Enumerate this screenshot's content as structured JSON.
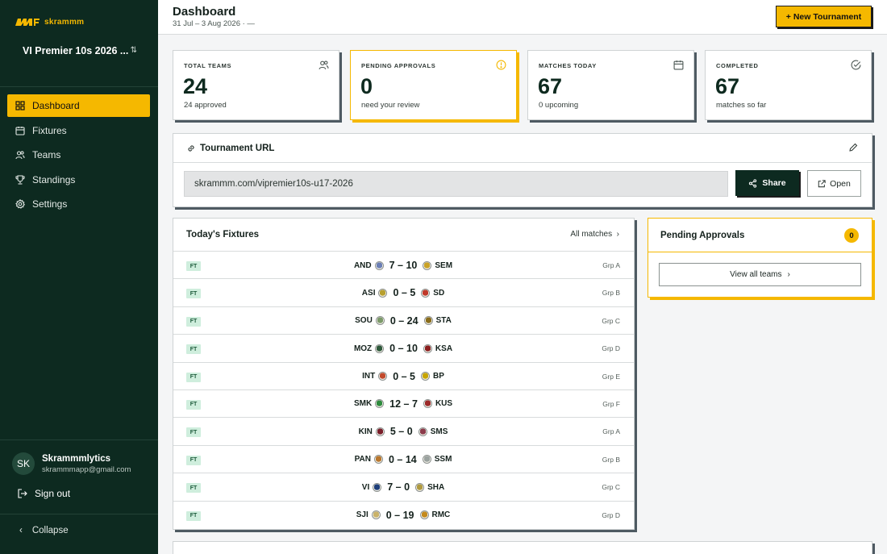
{
  "brand": {
    "name": "skrammm",
    "color": "#f5b800"
  },
  "sidebar": {
    "tournament": "VI Premier 10s 2026 ...",
    "items": [
      {
        "label": "Dashboard",
        "icon": "grid-icon",
        "active": true
      },
      {
        "label": "Fixtures",
        "icon": "calendar-icon"
      },
      {
        "label": "Teams",
        "icon": "users-icon"
      },
      {
        "label": "Standings",
        "icon": "trophy-icon"
      },
      {
        "label": "Settings",
        "icon": "gear-icon"
      }
    ],
    "user": {
      "initials": "SK",
      "name": "Skrammmlytics",
      "email": "skrammmapp@gmail.com"
    },
    "sign_out": "Sign out",
    "collapse": "Collapse"
  },
  "header": {
    "title": "Dashboard",
    "date_range": "31 Jul – 3 Aug 2026 · —",
    "new_tournament": "+ New Tournament"
  },
  "stats": [
    {
      "label": "TOTAL TEAMS",
      "value": "24",
      "sub": "24 approved",
      "icon": "users-icon"
    },
    {
      "label": "PENDING APPROVALS",
      "value": "0",
      "sub": "need your review",
      "icon": "alert-circle-icon",
      "accent": "#f5b800"
    },
    {
      "label": "MATCHES TODAY",
      "value": "67",
      "sub": "0 upcoming",
      "icon": "calendar-icon"
    },
    {
      "label": "COMPLETED",
      "value": "67",
      "sub": "matches so far",
      "icon": "check-circle-icon"
    }
  ],
  "url_card": {
    "title": "Tournament URL",
    "url": "skrammm.com/vipremier10s-u17-2026",
    "share": "Share",
    "open": "Open"
  },
  "fixtures": {
    "title": "Today's Fixtures",
    "all_matches": "All matches",
    "rows": [
      {
        "status": "FT",
        "home": "AND",
        "score": "7 – 10",
        "away": "SEM",
        "group": "Grp A",
        "home_color": "#6b7fb5",
        "away_color": "#c9a227"
      },
      {
        "status": "FT",
        "home": "ASI",
        "score": "0 – 5",
        "away": "SD",
        "group": "Grp B",
        "home_color": "#b8a030",
        "away_color": "#c0392b"
      },
      {
        "status": "FT",
        "home": "SOU",
        "score": "0 – 24",
        "away": "STA",
        "group": "Grp C",
        "home_color": "#7c9a6a",
        "away_color": "#8a6d1c"
      },
      {
        "status": "FT",
        "home": "MOZ",
        "score": "0 – 10",
        "away": "KSA",
        "group": "Grp D",
        "home_color": "#2f5a3c",
        "away_color": "#8b1e1e"
      },
      {
        "status": "FT",
        "home": "INT",
        "score": "0 – 5",
        "away": "BP",
        "group": "Grp E",
        "home_color": "#c24a2c",
        "away_color": "#c7a500"
      },
      {
        "status": "FT",
        "home": "SMK",
        "score": "12 – 7",
        "away": "KUS",
        "group": "Grp F",
        "home_color": "#2e8b3e",
        "away_color": "#9c2a2a"
      },
      {
        "status": "FT",
        "home": "KIN",
        "score": "5 – 0",
        "away": "SMS",
        "group": "Grp A",
        "home_color": "#7a1f2b",
        "away_color": "#8c3b4b"
      },
      {
        "status": "FT",
        "home": "PAN",
        "score": "0 – 14",
        "away": "SSM",
        "group": "Grp B",
        "home_color": "#b9772e",
        "away_color": "#9aa29f"
      },
      {
        "status": "FT",
        "home": "VI",
        "score": "7 – 0",
        "away": "SHA",
        "group": "Grp C",
        "home_color": "#1f3f7a",
        "away_color": "#b09a40"
      },
      {
        "status": "FT",
        "home": "SJI",
        "score": "0 – 19",
        "away": "RMC",
        "group": "Grp D",
        "home_color": "#c9b26a",
        "away_color": "#c48a1d"
      }
    ]
  },
  "pending": {
    "title": "Pending Approvals",
    "count": "0",
    "view_all": "View all teams"
  }
}
